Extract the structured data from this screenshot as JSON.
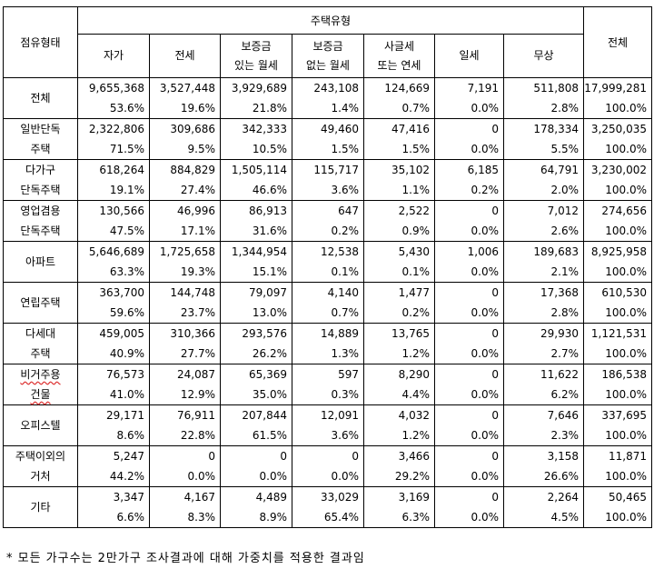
{
  "table": {
    "corner_label": "점유형태",
    "group_header": "주택유형",
    "total_header": "전체",
    "columns": [
      {
        "lines": [
          "자가"
        ]
      },
      {
        "lines": [
          "전세"
        ]
      },
      {
        "lines": [
          "보증금",
          "있는 월세"
        ]
      },
      {
        "lines": [
          "보증금",
          "없는 월세"
        ]
      },
      {
        "lines": [
          "사글세",
          "또는 연세"
        ]
      },
      {
        "lines": [
          "일세"
        ]
      },
      {
        "lines": [
          "무상"
        ]
      }
    ],
    "rows": [
      {
        "label": [
          "전체"
        ],
        "counts": [
          "9,655,368",
          "3,527,448",
          "3,929,689",
          "243,108",
          "124,669",
          "7,191",
          "511,808",
          "17,999,281"
        ],
        "pcts": [
          "53.6%",
          "19.6%",
          "21.8%",
          "1.4%",
          "0.7%",
          "0.0%",
          "2.8%",
          "100.0%"
        ]
      },
      {
        "label": [
          "일반단독",
          "주택"
        ],
        "counts": [
          "2,322,806",
          "309,686",
          "342,333",
          "49,460",
          "47,416",
          "0",
          "178,334",
          "3,250,035"
        ],
        "pcts": [
          "71.5%",
          "9.5%",
          "10.5%",
          "1.5%",
          "1.5%",
          "0.0%",
          "5.5%",
          "100.0%"
        ]
      },
      {
        "label": [
          "다가구",
          "단독주택"
        ],
        "counts": [
          "618,264",
          "884,829",
          "1,505,114",
          "115,717",
          "35,102",
          "6,185",
          "64,791",
          "3,230,002"
        ],
        "pcts": [
          "19.1%",
          "27.4%",
          "46.6%",
          "3.6%",
          "1.1%",
          "0.2%",
          "2.0%",
          "100.0%"
        ]
      },
      {
        "label": [
          "영업겸용",
          "단독주택"
        ],
        "counts": [
          "130,566",
          "46,996",
          "86,913",
          "647",
          "2,522",
          "0",
          "7,012",
          "274,656"
        ],
        "pcts": [
          "47.5%",
          "17.1%",
          "31.6%",
          "0.2%",
          "0.9%",
          "0.0%",
          "2.6%",
          "100.0%"
        ]
      },
      {
        "label": [
          "아파트"
        ],
        "counts": [
          "5,646,689",
          "1,725,658",
          "1,344,954",
          "12,538",
          "5,430",
          "1,006",
          "189,683",
          "8,925,958"
        ],
        "pcts": [
          "63.3%",
          "19.3%",
          "15.1%",
          "0.1%",
          "0.1%",
          "0.0%",
          "2.1%",
          "100.0%"
        ]
      },
      {
        "label": [
          "연립주택"
        ],
        "counts": [
          "363,700",
          "144,748",
          "79,097",
          "4,140",
          "1,477",
          "0",
          "17,368",
          "610,530"
        ],
        "pcts": [
          "59.6%",
          "23.7%",
          "13.0%",
          "0.7%",
          "0.2%",
          "0.0%",
          "2.8%",
          "100.0%"
        ]
      },
      {
        "label": [
          "다세대",
          "주택"
        ],
        "counts": [
          "459,005",
          "310,366",
          "293,576",
          "14,889",
          "13,765",
          "0",
          "29,930",
          "1,121,531"
        ],
        "pcts": [
          "40.9%",
          "27.7%",
          "26.2%",
          "1.3%",
          "1.2%",
          "0.0%",
          "2.7%",
          "100.0%"
        ]
      },
      {
        "label": [
          "비거주용",
          "건물"
        ],
        "counts": [
          "76,573",
          "24,087",
          "65,369",
          "597",
          "8,290",
          "0",
          "11,622",
          "186,538"
        ],
        "pcts": [
          "41.0%",
          "12.9%",
          "35.0%",
          "0.3%",
          "4.4%",
          "0.0%",
          "6.2%",
          "100.0%"
        ]
      },
      {
        "label": [
          "오피스텔"
        ],
        "counts": [
          "29,171",
          "76,911",
          "207,844",
          "12,091",
          "4,032",
          "0",
          "7,646",
          "337,695"
        ],
        "pcts": [
          "8.6%",
          "22.8%",
          "61.5%",
          "3.6%",
          "1.2%",
          "0.0%",
          "2.3%",
          "100.0%"
        ]
      },
      {
        "label": [
          "주택이외의",
          "거처"
        ],
        "counts": [
          "5,247",
          "0",
          "0",
          "0",
          "3,466",
          "0",
          "3,158",
          "11,871"
        ],
        "pcts": [
          "44.2%",
          "0.0%",
          "0.0%",
          "0.0%",
          "29.2%",
          "0.0%",
          "26.6%",
          "100.0%"
        ]
      },
      {
        "label": [
          "기타"
        ],
        "counts": [
          "3,347",
          "4,167",
          "4,489",
          "33,029",
          "3,169",
          "0",
          "2,264",
          "50,465"
        ],
        "pcts": [
          "6.6%",
          "8.3%",
          "8.9%",
          "65.4%",
          "6.3%",
          "0.0%",
          "4.5%",
          "100.0%"
        ]
      }
    ]
  },
  "footnote": "* 모든 가구수는 2만가구 조사결과에 대해 가중치를 적용한 결과임"
}
